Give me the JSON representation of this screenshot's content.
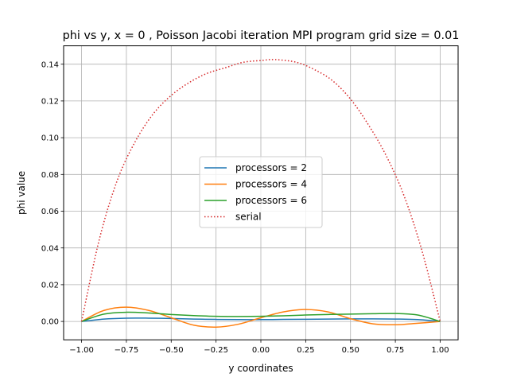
{
  "chart_data": {
    "type": "line",
    "title": "phi vs y, x = 0  , Poisson Jacobi iteration MPI program grid size = 0.01",
    "xlabel": "y coordinates",
    "ylabel": "phi value",
    "xlim": [
      -1.1,
      1.1
    ],
    "ylim": [
      -0.01,
      0.15
    ],
    "xticks": [
      -1.0,
      -0.75,
      -0.5,
      -0.25,
      0.0,
      0.25,
      0.5,
      0.75,
      1.0
    ],
    "xtick_labels": [
      "−1.00",
      "−0.75",
      "−0.50",
      "−0.25",
      "0.00",
      "0.25",
      "0.50",
      "0.75",
      "1.00"
    ],
    "yticks": [
      0.0,
      0.02,
      0.04,
      0.06,
      0.08,
      0.1,
      0.12,
      0.14
    ],
    "ytick_labels": [
      "0.00",
      "0.02",
      "0.04",
      "0.06",
      "0.08",
      "0.10",
      "0.12",
      "0.14"
    ],
    "grid": true,
    "legend": "center",
    "series": [
      {
        "name": "processors = 2",
        "color": "#1f77b4",
        "linestyle": "solid",
        "x": [
          -1.0,
          -0.875,
          -0.75,
          -0.625,
          -0.5,
          -0.375,
          -0.25,
          -0.125,
          0.0,
          0.125,
          0.25,
          0.375,
          0.5,
          0.625,
          0.75,
          0.875,
          1.0
        ],
        "y": [
          0.0,
          0.0013,
          0.0018,
          0.0018,
          0.0016,
          0.0013,
          0.0011,
          0.001,
          0.001,
          0.0011,
          0.0012,
          0.0013,
          0.0014,
          0.0014,
          0.0013,
          0.001,
          0.0
        ]
      },
      {
        "name": "processors = 4",
        "color": "#ff7f0e",
        "linestyle": "solid",
        "x": [
          -1.0,
          -0.875,
          -0.75,
          -0.625,
          -0.5,
          -0.375,
          -0.25,
          -0.125,
          0.0,
          0.125,
          0.25,
          0.375,
          0.5,
          0.625,
          0.75,
          0.875,
          1.0
        ],
        "y": [
          0.0,
          0.006,
          0.0078,
          0.006,
          0.002,
          -0.002,
          -0.0031,
          -0.0015,
          0.002,
          0.0052,
          0.0065,
          0.0052,
          0.0015,
          -0.0013,
          -0.0018,
          -0.001,
          0.0
        ]
      },
      {
        "name": "processors = 6",
        "color": "#2ca02c",
        "linestyle": "solid",
        "x": [
          -1.0,
          -0.875,
          -0.75,
          -0.625,
          -0.5,
          -0.375,
          -0.25,
          -0.125,
          0.0,
          0.125,
          0.25,
          0.375,
          0.5,
          0.625,
          0.75,
          0.875,
          1.0
        ],
        "y": [
          0.0,
          0.004,
          0.005,
          0.0046,
          0.0038,
          0.0032,
          0.0028,
          0.0027,
          0.0028,
          0.0031,
          0.0035,
          0.0038,
          0.004,
          0.0042,
          0.0043,
          0.0035,
          0.0
        ]
      },
      {
        "name": "serial",
        "color": "#d62728",
        "linestyle": "dotted",
        "x": [
          -1.0,
          -0.9,
          -0.8,
          -0.7,
          -0.6,
          -0.5,
          -0.4,
          -0.3,
          -0.2,
          -0.1,
          0.0,
          0.08,
          0.2,
          0.3,
          0.4,
          0.5,
          0.6,
          0.7,
          0.8,
          0.9,
          1.0
        ],
        "y": [
          0.0,
          0.045,
          0.077,
          0.098,
          0.113,
          0.123,
          0.13,
          0.135,
          0.138,
          0.141,
          0.142,
          0.1425,
          0.141,
          0.137,
          0.131,
          0.121,
          0.107,
          0.09,
          0.068,
          0.038,
          0.0
        ]
      }
    ]
  }
}
